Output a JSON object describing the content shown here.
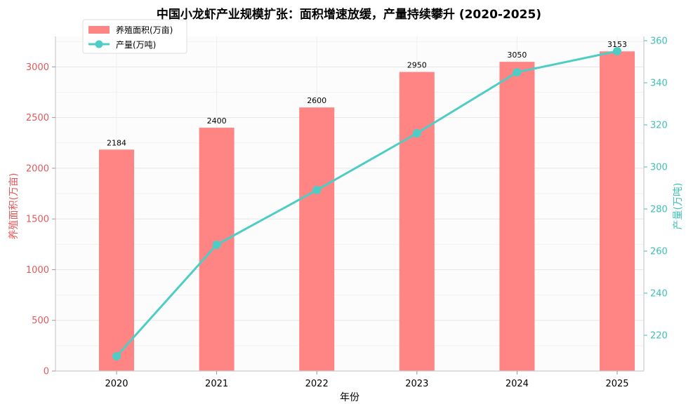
{
  "chart_data": {
    "type": "bar",
    "title": "中国小龙虾产业规模扩张：面积增速放缓，产量持续攀升 (2020-2025)",
    "xlabel": "年份",
    "ylabel_left": "养殖面积(万亩)",
    "ylabel_right": "产量(万吨)",
    "categories": [
      "2020",
      "2021",
      "2022",
      "2023",
      "2024",
      "2025"
    ],
    "series": [
      {
        "name": "养殖面积(万亩)",
        "kind": "bar",
        "axis": "left",
        "color": "#FF8585",
        "values": [
          2184,
          2400,
          2600,
          2950,
          3050,
          3153
        ],
        "labels": [
          "2184",
          "2400",
          "2600",
          "2950",
          "3050",
          "3153"
        ]
      },
      {
        "name": "产量(万吨)",
        "kind": "line",
        "axis": "right",
        "color": "#4ECDC4",
        "values": [
          210,
          263,
          289,
          316,
          345,
          355
        ]
      }
    ],
    "ylim_left": [
      0,
      3300
    ],
    "ylim_right": [
      203,
      362
    ],
    "yticks_left": [
      "0",
      "500",
      "1000",
      "1500",
      "2000",
      "2500",
      "3000"
    ],
    "yticks_right": [
      "220",
      "240",
      "260",
      "280",
      "300",
      "320",
      "340",
      "360"
    ],
    "left_axis_color": "#E05A5A",
    "right_axis_color": "#3FC1B8",
    "grid": true,
    "legend_position": "top-left"
  }
}
